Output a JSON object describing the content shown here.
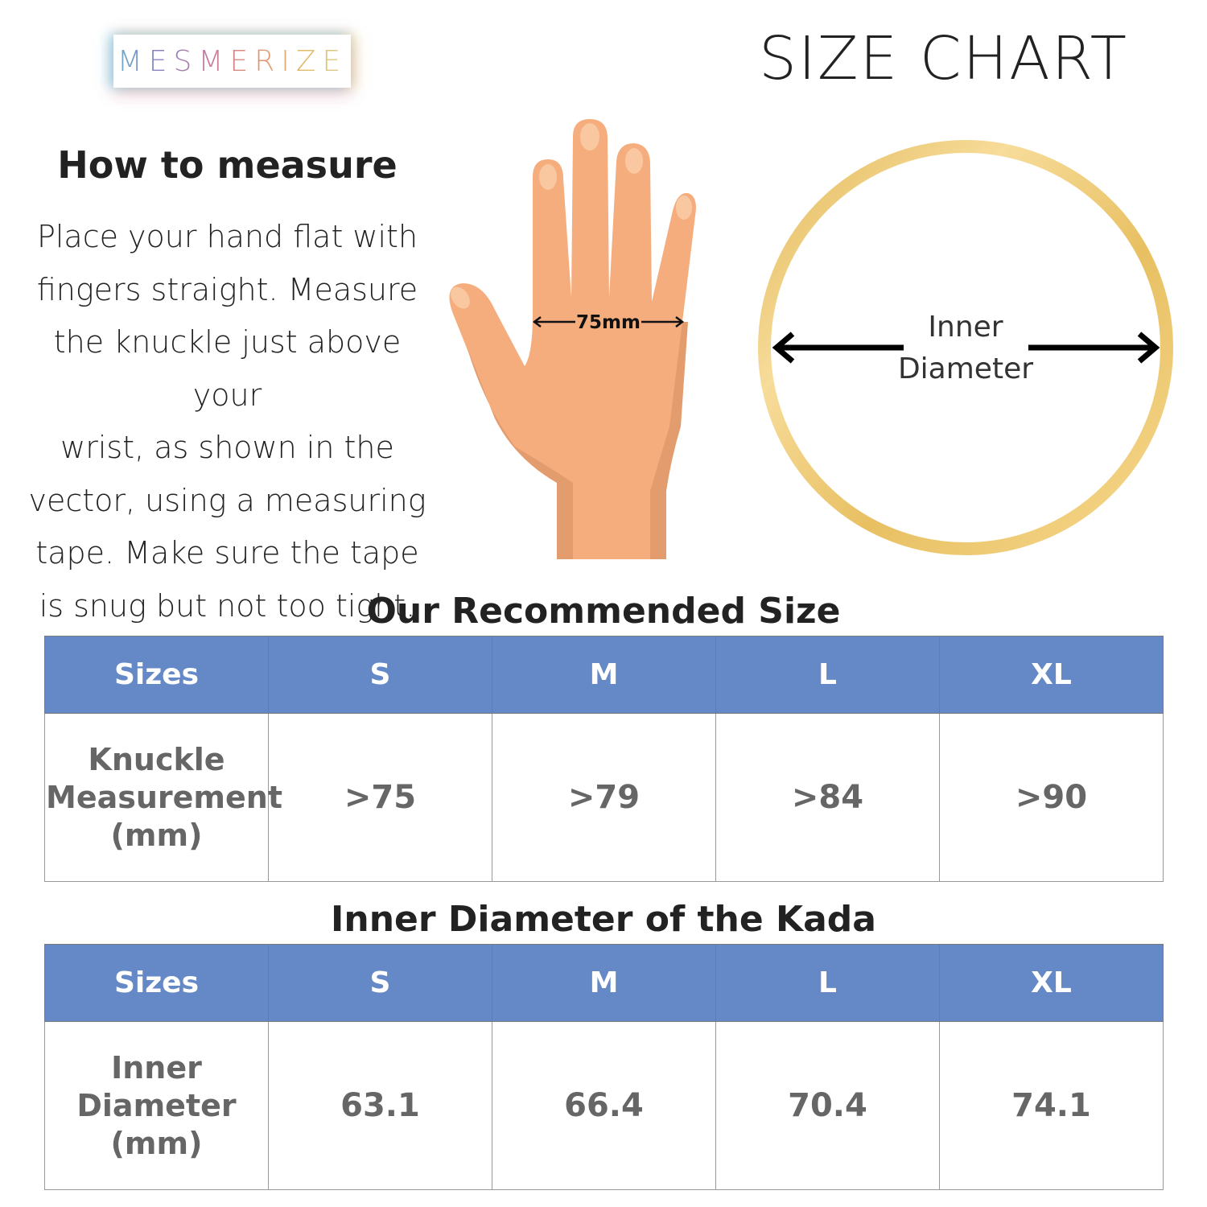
{
  "brand": {
    "logo_text": "MESMERIZE"
  },
  "header": {
    "title": "SIZE CHART"
  },
  "instructions": {
    "heading": "How to measure",
    "lines": [
      "Place your hand flat with",
      "fingers straight. Measure",
      "the knuckle just above your",
      "wrist, as shown in the",
      "vector, using a measuring",
      "tape. Make sure the tape",
      "is snug but not too tight."
    ]
  },
  "hand_illustration": {
    "measurement_label": "75mm",
    "skin_color": "#f5ad7e"
  },
  "ring_illustration": {
    "label_line1": "Inner",
    "label_line2": "Diameter",
    "ring_color": "#e8c062"
  },
  "accent_color": "#6589c6",
  "recommended": {
    "title": "Our Recommended Size",
    "headers": [
      "Sizes",
      "S",
      "M",
      "L",
      "XL"
    ],
    "row_label": [
      "Knuckle",
      "Measurement",
      "(mm)"
    ],
    "values": [
      ">75",
      ">79",
      ">84",
      ">90"
    ]
  },
  "inner_diameter": {
    "title": "Inner Diameter of the Kada",
    "headers": [
      "Sizes",
      "S",
      "M",
      "L",
      "XL"
    ],
    "row_label": [
      "Inner",
      "Diameter",
      "(mm)"
    ],
    "values": [
      "63.1",
      "66.4",
      "70.4",
      "74.1"
    ]
  }
}
